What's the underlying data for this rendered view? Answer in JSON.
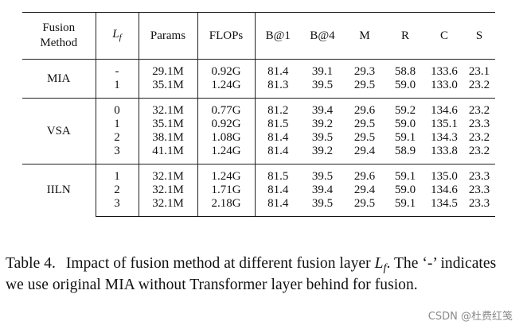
{
  "table": {
    "headers": {
      "fusion_method_line1": "Fusion",
      "fusion_method_line2": "Method",
      "lf_main": "L",
      "lf_sub": "f",
      "params": "Params",
      "flops": "FLOPs",
      "b1": "B@1",
      "b4": "B@4",
      "m": "M",
      "r": "R",
      "c": "C",
      "s": "S"
    },
    "groups": [
      {
        "method": "MIA",
        "rows": [
          {
            "lf": "-",
            "params": "29.1M",
            "flops": "0.92G",
            "b1": "81.4",
            "b4": "39.1",
            "m": "29.3",
            "r": "58.8",
            "c": "133.6",
            "s": "23.1",
            "bold": []
          },
          {
            "lf": "1",
            "params": "35.1M",
            "flops": "1.24G",
            "b1": "81.3",
            "b4": "39.5",
            "m": "29.5",
            "r": "59.0",
            "c": "133.0",
            "s": "23.2",
            "bold": []
          }
        ]
      },
      {
        "method": "VSA",
        "rows": [
          {
            "lf": "0",
            "params": "32.1M",
            "flops": "0.77G",
            "b1": "81.2",
            "b4": "39.4",
            "m": "29.6",
            "r": "59.2",
            "c": "134.6",
            "s": "23.2",
            "bold": [
              "params",
              "m",
              "r"
            ]
          },
          {
            "lf": "1",
            "params": "35.1M",
            "flops": "0.92G",
            "b1": "81.5",
            "b4": "39.2",
            "m": "29.5",
            "r": "59.0",
            "c": "135.1",
            "s": "23.3",
            "bold": [
              "b1",
              "c",
              "s"
            ]
          },
          {
            "lf": "2",
            "params": "38.1M",
            "flops": "1.08G",
            "b1": "81.4",
            "b4": "39.5",
            "m": "29.5",
            "r": "59.1",
            "c": "134.3",
            "s": "23.2",
            "bold": [
              "b4"
            ]
          },
          {
            "lf": "3",
            "params": "41.1M",
            "flops": "1.24G",
            "b1": "81.4",
            "b4": "39.2",
            "m": "29.4",
            "r": "58.9",
            "c": "133.8",
            "s": "23.2",
            "bold": []
          }
        ]
      },
      {
        "method": "IILN",
        "rows": [
          {
            "lf": "1",
            "params": "32.1M",
            "flops": "1.24G",
            "b1": "81.5",
            "b4": "39.5",
            "m": "29.6",
            "r": "59.1",
            "c": "135.0",
            "s": "23.3",
            "bold": [
              "params",
              "flops",
              "b1",
              "b4",
              "m",
              "r",
              "c",
              "s"
            ]
          },
          {
            "lf": "2",
            "params": "32.1M",
            "flops": "1.71G",
            "b1": "81.4",
            "b4": "39.4",
            "m": "29.4",
            "r": "59.0",
            "c": "134.6",
            "s": "23.3",
            "bold": [
              "params"
            ]
          },
          {
            "lf": "3",
            "params": "32.1M",
            "flops": "2.18G",
            "b1": "81.4",
            "b4": "39.5",
            "m": "29.5",
            "r": "59.1",
            "c": "134.5",
            "s": "23.3",
            "bold": [
              "params"
            ]
          }
        ]
      }
    ]
  },
  "caption": {
    "label": "Table 4.",
    "text_before_lf": "Impact of fusion method at different fusion layer",
    "lf_main": "L",
    "lf_sub": "f",
    "text_after_lf": ". The ‘-’ indicates we use original MIA without Transformer layer behind for fusion."
  },
  "watermark": "CSDN @杜费红笺"
}
